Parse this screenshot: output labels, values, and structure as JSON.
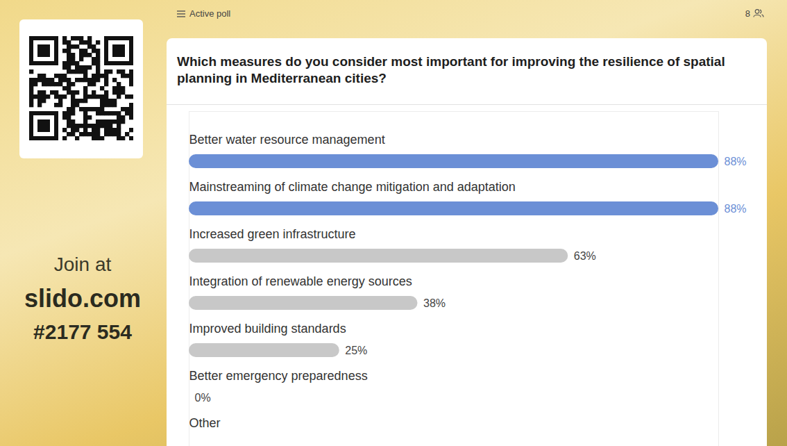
{
  "chart_data": {
    "type": "bar",
    "orientation": "horizontal",
    "title": "Which measures do you consider most important for improving the resilience of spatial planning in Mediterranean cities?",
    "categories": [
      "Better water resource management",
      "Mainstreaming of climate change mitigation and adaptation",
      "Increased green infrastructure",
      "Integration of renewable energy sources",
      "Improved building standards",
      "Better emergency preparedness",
      "Other"
    ],
    "values": [
      88,
      88,
      63,
      38,
      25,
      0,
      null
    ],
    "value_labels": [
      "88%",
      "88%",
      "63%",
      "38%",
      "25%",
      "0%",
      null
    ],
    "colors": [
      "#6b8fd6",
      "#6b8fd6",
      "#c8c8c8",
      "#c8c8c8",
      "#c8c8c8",
      "#c8c8c8",
      "#c8c8c8"
    ],
    "xlim": [
      0,
      88
    ],
    "tick_labels": false,
    "data_labels": true
  },
  "header": {
    "status": "Active poll",
    "participants": 8
  },
  "sidebar": {
    "join": "Join at",
    "site": "slido.com",
    "code": "#2177 554"
  }
}
